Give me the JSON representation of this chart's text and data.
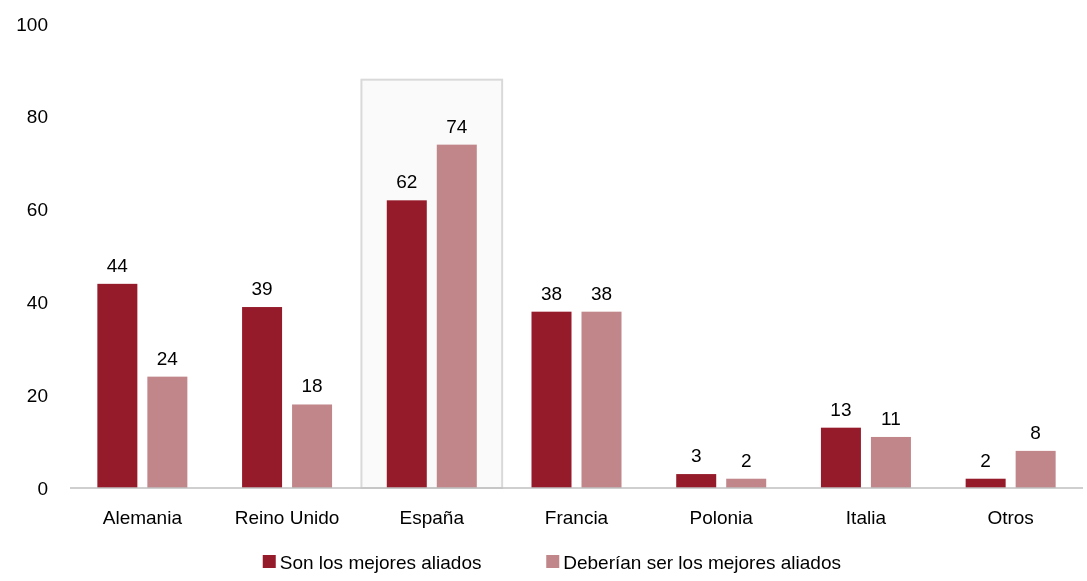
{
  "chart_data": {
    "type": "bar",
    "categories": [
      "Alemania",
      "Reino Unido",
      "España",
      "Francia",
      "Polonia",
      "Italia",
      "Otros"
    ],
    "series": [
      {
        "name": "Son los mejores aliados",
        "color": "#951b2b",
        "values": [
          44,
          39,
          62,
          38,
          3,
          13,
          2
        ]
      },
      {
        "name": "Deberían ser los mejores aliados",
        "color": "#c0868a",
        "values": [
          24,
          18,
          74,
          38,
          2,
          11,
          8
        ]
      }
    ],
    "ylim": [
      0,
      100
    ],
    "yticks": [
      0,
      20,
      40,
      60,
      80,
      100
    ],
    "grid": false,
    "legend": "bottom",
    "data_labels": true,
    "bands": [
      {
        "axis": "x",
        "from": "España",
        "to": "España",
        "color": "#d9d9d9"
      }
    ]
  }
}
